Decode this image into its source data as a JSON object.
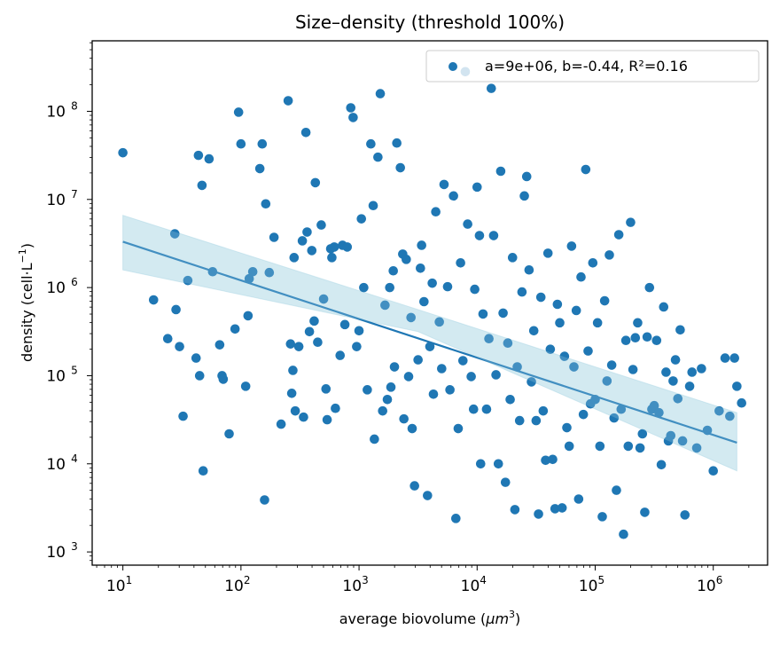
{
  "chart_data": {
    "type": "scatter",
    "title": "Size–density (threshold 100%)",
    "xlabel": "average biovolume (μm³)",
    "xlabel_parts": {
      "text": "average biovolume (",
      "var": "μm",
      "sup": "3",
      "close": ")"
    },
    "ylabel": "density (cell·L⁻¹)",
    "ylabel_parts": {
      "text": "density (cell·L",
      "sup": "−1",
      "close": ")"
    },
    "xscale": "log",
    "yscale": "log",
    "xlim_log10": [
      0.74,
      6.46
    ],
    "ylim_log10": [
      2.85,
      8.8
    ],
    "x_ticks": [
      {
        "exp": 1,
        "base": "10",
        "sup": "1"
      },
      {
        "exp": 2,
        "base": "10",
        "sup": "2"
      },
      {
        "exp": 3,
        "base": "10",
        "sup": "3"
      },
      {
        "exp": 4,
        "base": "10",
        "sup": "4"
      },
      {
        "exp": 5,
        "base": "10",
        "sup": "5"
      },
      {
        "exp": 6,
        "base": "10",
        "sup": "6"
      }
    ],
    "y_ticks": [
      {
        "exp": 3,
        "base": "10",
        "sup": "3"
      },
      {
        "exp": 4,
        "base": "10",
        "sup": "4"
      },
      {
        "exp": 5,
        "base": "10",
        "sup": "5"
      },
      {
        "exp": 6,
        "base": "10",
        "sup": "6"
      },
      {
        "exp": 7,
        "base": "10",
        "sup": "7"
      },
      {
        "exp": 8,
        "base": "10",
        "sup": "8"
      }
    ],
    "legend": {
      "label": "a=9e+06, b=-0.44, R²=0.16",
      "position": "top-right"
    },
    "fit": {
      "a": 9000000.0,
      "b": -0.44,
      "r2": 0.16,
      "x_log10_range": [
        1.0,
        6.2
      ],
      "line_log10": [
        [
          1.0,
          6.52
        ],
        [
          6.2,
          4.24
        ]
      ],
      "ci_upper_log10": [
        [
          1.0,
          6.82
        ],
        [
          3.5,
          5.75
        ],
        [
          6.2,
          4.58
        ]
      ],
      "ci_lower_log10": [
        [
          1.0,
          6.2
        ],
        [
          3.5,
          5.5
        ],
        [
          6.2,
          3.92
        ]
      ]
    },
    "colors": {
      "points": "#1f77b4",
      "line": "#1f77b4",
      "band": "#add8e6"
    },
    "series": [
      {
        "name": "a=9e+06, b=-0.44, R²=0.16",
        "points_log10": [
          [
            1.0,
            7.53
          ],
          [
            1.26,
            5.86
          ],
          [
            1.38,
            5.42
          ],
          [
            1.44,
            6.61
          ],
          [
            1.45,
            5.75
          ],
          [
            1.48,
            5.33
          ],
          [
            1.51,
            4.54
          ],
          [
            1.55,
            6.08
          ],
          [
            1.62,
            5.2
          ],
          [
            1.64,
            7.5
          ],
          [
            1.65,
            5.0
          ],
          [
            1.67,
            7.16
          ],
          [
            1.68,
            3.92
          ],
          [
            1.73,
            7.46
          ],
          [
            1.76,
            6.18
          ],
          [
            1.82,
            5.35
          ],
          [
            1.84,
            5.0
          ],
          [
            1.85,
            4.96
          ],
          [
            1.9,
            4.34
          ],
          [
            1.95,
            5.53
          ],
          [
            1.98,
            7.99
          ],
          [
            2.0,
            7.63
          ],
          [
            2.04,
            4.88
          ],
          [
            2.06,
            5.68
          ],
          [
            2.07,
            6.1
          ],
          [
            2.1,
            6.18
          ],
          [
            2.16,
            7.35
          ],
          [
            2.18,
            7.63
          ],
          [
            2.2,
            3.59
          ],
          [
            2.21,
            6.95
          ],
          [
            2.24,
            6.17
          ],
          [
            2.28,
            6.57
          ],
          [
            2.34,
            4.45
          ],
          [
            2.4,
            8.12
          ],
          [
            2.42,
            5.36
          ],
          [
            2.43,
            4.8
          ],
          [
            2.44,
            5.06
          ],
          [
            2.45,
            6.34
          ],
          [
            2.46,
            4.6
          ],
          [
            2.49,
            5.33
          ],
          [
            2.52,
            6.53
          ],
          [
            2.53,
            4.53
          ],
          [
            2.55,
            7.76
          ],
          [
            2.56,
            6.63
          ],
          [
            2.58,
            5.5
          ],
          [
            2.6,
            6.42
          ],
          [
            2.62,
            5.62
          ],
          [
            2.63,
            7.19
          ],
          [
            2.65,
            5.38
          ],
          [
            2.68,
            6.71
          ],
          [
            2.7,
            5.87
          ],
          [
            2.72,
            4.85
          ],
          [
            2.73,
            4.5
          ],
          [
            2.76,
            6.44
          ],
          [
            2.77,
            6.34
          ],
          [
            2.79,
            6.46
          ],
          [
            2.8,
            4.63
          ],
          [
            2.84,
            5.23
          ],
          [
            2.86,
            6.48
          ],
          [
            2.88,
            5.58
          ],
          [
            2.9,
            6.46
          ],
          [
            2.93,
            8.04
          ],
          [
            2.95,
            7.93
          ],
          [
            2.98,
            5.33
          ],
          [
            3.0,
            5.51
          ],
          [
            3.02,
            6.78
          ],
          [
            3.04,
            6.0
          ],
          [
            3.07,
            4.84
          ],
          [
            3.1,
            7.63
          ],
          [
            3.12,
            6.93
          ],
          [
            3.13,
            4.28
          ],
          [
            3.16,
            7.48
          ],
          [
            3.18,
            8.2
          ],
          [
            3.2,
            4.6
          ],
          [
            3.22,
            5.8
          ],
          [
            3.24,
            4.73
          ],
          [
            3.26,
            6.0
          ],
          [
            3.27,
            4.87
          ],
          [
            3.29,
            6.19
          ],
          [
            3.3,
            5.1
          ],
          [
            3.32,
            7.64
          ],
          [
            3.35,
            7.36
          ],
          [
            3.37,
            6.38
          ],
          [
            3.38,
            4.51
          ],
          [
            3.4,
            6.32
          ],
          [
            3.42,
            4.99
          ],
          [
            3.44,
            5.66
          ],
          [
            3.45,
            4.4
          ],
          [
            3.47,
            3.75
          ],
          [
            3.5,
            5.18
          ],
          [
            3.52,
            6.22
          ],
          [
            3.53,
            6.48
          ],
          [
            3.55,
            5.84
          ],
          [
            3.58,
            3.64
          ],
          [
            3.6,
            5.33
          ],
          [
            3.62,
            6.05
          ],
          [
            3.63,
            4.79
          ],
          [
            3.65,
            6.86
          ],
          [
            3.68,
            5.61
          ],
          [
            3.7,
            5.08
          ],
          [
            3.72,
            7.17
          ],
          [
            3.75,
            6.01
          ],
          [
            3.77,
            4.84
          ],
          [
            3.8,
            7.04
          ],
          [
            3.82,
            3.38
          ],
          [
            3.84,
            4.4
          ],
          [
            3.86,
            6.28
          ],
          [
            3.88,
            5.17
          ],
          [
            3.9,
            8.45
          ],
          [
            3.92,
            6.72
          ],
          [
            3.95,
            4.99
          ],
          [
            3.97,
            4.62
          ],
          [
            3.98,
            5.98
          ],
          [
            4.0,
            7.14
          ],
          [
            4.02,
            6.59
          ],
          [
            4.03,
            4.0
          ],
          [
            4.05,
            5.7
          ],
          [
            4.08,
            4.62
          ],
          [
            4.1,
            5.42
          ],
          [
            4.12,
            8.26
          ],
          [
            4.14,
            6.59
          ],
          [
            4.16,
            5.01
          ],
          [
            4.18,
            4.0
          ],
          [
            4.2,
            7.32
          ],
          [
            4.22,
            5.71
          ],
          [
            4.24,
            3.79
          ],
          [
            4.26,
            5.37
          ],
          [
            4.28,
            4.73
          ],
          [
            4.3,
            6.34
          ],
          [
            4.32,
            3.48
          ],
          [
            4.34,
            5.1
          ],
          [
            4.36,
            4.49
          ],
          [
            4.38,
            5.95
          ],
          [
            4.4,
            7.04
          ],
          [
            4.42,
            7.26
          ],
          [
            4.44,
            6.2
          ],
          [
            4.46,
            4.93
          ],
          [
            4.48,
            5.51
          ],
          [
            4.5,
            4.49
          ],
          [
            4.52,
            3.43
          ],
          [
            4.54,
            5.89
          ],
          [
            4.56,
            4.6
          ],
          [
            4.58,
            4.04
          ],
          [
            4.6,
            6.39
          ],
          [
            4.62,
            5.3
          ],
          [
            4.64,
            4.05
          ],
          [
            4.66,
            3.49
          ],
          [
            4.68,
            5.81
          ],
          [
            4.7,
            5.6
          ],
          [
            4.72,
            3.5
          ],
          [
            4.74,
            5.22
          ],
          [
            4.76,
            4.41
          ],
          [
            4.78,
            4.2
          ],
          [
            4.8,
            6.47
          ],
          [
            4.82,
            5.1
          ],
          [
            4.84,
            5.74
          ],
          [
            4.86,
            3.6
          ],
          [
            4.88,
            6.12
          ],
          [
            4.9,
            4.56
          ],
          [
            4.92,
            7.34
          ],
          [
            4.94,
            5.28
          ],
          [
            4.96,
            4.68
          ],
          [
            4.98,
            6.28
          ],
          [
            5.0,
            4.73
          ],
          [
            5.02,
            5.6
          ],
          [
            5.04,
            4.2
          ],
          [
            5.06,
            3.4
          ],
          [
            5.08,
            5.85
          ],
          [
            5.1,
            4.94
          ],
          [
            5.12,
            6.37
          ],
          [
            5.14,
            5.12
          ],
          [
            5.16,
            4.52
          ],
          [
            5.18,
            3.7
          ],
          [
            5.2,
            6.6
          ],
          [
            5.22,
            4.62
          ],
          [
            5.24,
            3.2
          ],
          [
            5.26,
            5.4
          ],
          [
            5.28,
            4.2
          ],
          [
            5.3,
            6.74
          ],
          [
            5.32,
            5.07
          ],
          [
            5.34,
            5.43
          ],
          [
            5.36,
            5.6
          ],
          [
            5.38,
            4.18
          ],
          [
            5.4,
            4.34
          ],
          [
            5.42,
            3.45
          ],
          [
            5.44,
            5.44
          ],
          [
            5.46,
            6.0
          ],
          [
            5.48,
            4.62
          ],
          [
            5.5,
            4.66
          ],
          [
            5.52,
            5.4
          ],
          [
            5.54,
            4.58
          ],
          [
            5.56,
            3.99
          ],
          [
            5.58,
            5.78
          ],
          [
            5.6,
            5.04
          ],
          [
            5.62,
            4.26
          ],
          [
            5.64,
            4.32
          ],
          [
            5.66,
            4.94
          ],
          [
            5.68,
            5.18
          ],
          [
            5.7,
            4.74
          ],
          [
            5.72,
            5.52
          ],
          [
            5.74,
            4.26
          ],
          [
            5.76,
            3.42
          ],
          [
            5.8,
            4.88
          ],
          [
            5.82,
            5.04
          ],
          [
            5.86,
            4.18
          ],
          [
            5.9,
            5.08
          ],
          [
            5.95,
            4.38
          ],
          [
            6.0,
            3.92
          ],
          [
            6.05,
            4.6
          ],
          [
            6.1,
            5.2
          ],
          [
            6.14,
            4.54
          ],
          [
            6.18,
            5.2
          ],
          [
            6.2,
            4.88
          ],
          [
            6.24,
            4.69
          ]
        ]
      }
    ]
  }
}
